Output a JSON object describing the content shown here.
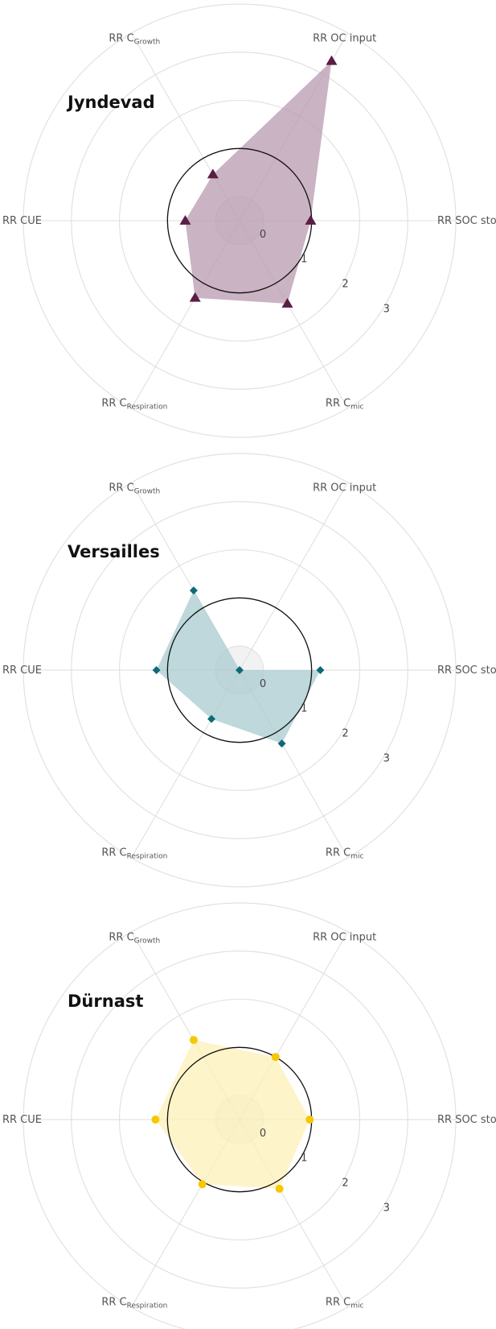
{
  "chart_data": [
    {
      "type": "radar",
      "title": "Jyndevad",
      "axes": [
        {
          "label": "RR SOC stock"
        },
        {
          "label": "RR OC input"
        },
        {
          "label": "RR C",
          "sub": "Growth"
        },
        {
          "label": "RR CUE"
        },
        {
          "label": "RR C",
          "sub": "Respiration"
        },
        {
          "label": "RR C",
          "sub": "mic"
        }
      ],
      "values": [
        0.98,
        3.33,
        0.61,
        0.63,
        1.35,
        1.49
      ],
      "color": "#5a1d44",
      "fill": "#b89aaf",
      "marker": "triangle",
      "rlim": [
        -0.5,
        4
      ],
      "rticks": [
        0,
        1,
        2,
        3
      ],
      "reference": 1
    },
    {
      "type": "radar",
      "title": "Versailles",
      "axes": [
        {
          "label": "RR SOC stock"
        },
        {
          "label": "RR OC input"
        },
        {
          "label": "RR C",
          "sub": "Growth"
        },
        {
          "label": "RR CUE"
        },
        {
          "label": "RR C",
          "sub": "Respiration"
        },
        {
          "label": "RR C",
          "sub": "mic"
        }
      ],
      "values": [
        1.18,
        -0.5,
        1.41,
        1.23,
        0.67,
        1.26
      ],
      "color": "#0d6b77",
      "fill": "#a8cbcf",
      "marker": "diamond",
      "rlim": [
        -0.5,
        4
      ],
      "rticks": [
        0,
        1,
        2,
        3
      ],
      "reference": 1
    },
    {
      "type": "radar",
      "title": "Dürnast",
      "axes": [
        {
          "label": "RR SOC stock"
        },
        {
          "label": "RR OC input"
        },
        {
          "label": "RR C",
          "sub": "Growth"
        },
        {
          "label": "RR CUE"
        },
        {
          "label": "RR C",
          "sub": "Respiration"
        },
        {
          "label": "RR C",
          "sub": "mic"
        }
      ],
      "values": [
        0.96,
        1.0,
        1.41,
        1.25,
        1.05,
        1.16
      ],
      "color": "#f5c800",
      "fill": "#fdf0b8",
      "marker": "circle",
      "rlim": [
        -0.5,
        4
      ],
      "rticks": [
        0,
        1,
        2,
        3
      ],
      "reference": 1
    }
  ]
}
